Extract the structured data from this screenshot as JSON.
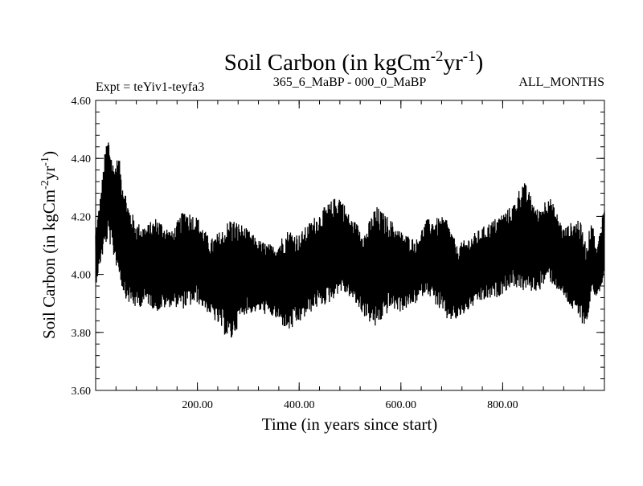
{
  "chart_data": {
    "type": "line",
    "title": "Soil Carbon (in kgCm",
    "title_sup1": "-2",
    "title_mid": "yr",
    "title_sup2": "-1",
    "title_end": ")",
    "subtitle_left": "Expt = teYiv1-teyfa3",
    "subtitle_center": "365_6_MaBP - 000_0_MaBP",
    "subtitle_right": "ALL_MONTHS",
    "xlabel": "Time (in years since start)",
    "ylabel": "Soil Carbon (in kgCm",
    "ylabel_sup1": "-2",
    "ylabel_mid": "yr",
    "ylabel_sup2": "-1",
    "ylabel_end": ")",
    "xlim": [
      0,
      1000
    ],
    "ylim": [
      3.6,
      4.6
    ],
    "x_ticks": [
      200,
      400,
      600,
      800
    ],
    "x_tick_labels": [
      "200.00",
      "400.00",
      "600.00",
      "800.00"
    ],
    "y_ticks": [
      3.6,
      3.8,
      4.0,
      4.2,
      4.4,
      4.6
    ],
    "y_tick_labels": [
      "3.60",
      "3.80",
      "4.00",
      "4.20",
      "4.40",
      "4.60"
    ],
    "series": [
      {
        "name": "Soil Carbon",
        "color": "#000000",
        "envelope": {
          "x": [
            0,
            10,
            20,
            25,
            35,
            45,
            55,
            65,
            80,
            100,
            120,
            150,
            175,
            200,
            225,
            250,
            265,
            290,
            320,
            350,
            380,
            400,
            430,
            460,
            480,
            500,
            530,
            550,
            580,
            600,
            630,
            650,
            690,
            710,
            750,
            790,
            820,
            840,
            870,
            890,
            920,
            950,
            965,
            975,
            985,
            995,
            1000
          ],
          "upper": [
            4.15,
            4.28,
            4.45,
            4.48,
            4.38,
            4.41,
            4.32,
            4.24,
            4.18,
            4.17,
            4.2,
            4.15,
            4.23,
            4.2,
            4.12,
            4.16,
            4.2,
            4.17,
            4.12,
            4.1,
            4.16,
            4.14,
            4.2,
            4.25,
            4.28,
            4.2,
            4.15,
            4.24,
            4.19,
            4.15,
            4.12,
            4.19,
            4.2,
            4.1,
            4.15,
            4.2,
            4.24,
            4.33,
            4.22,
            4.28,
            4.16,
            4.2,
            4.1,
            4.2,
            4.08,
            4.2,
            4.25
          ],
          "lower": [
            3.96,
            4.04,
            4.1,
            4.12,
            4.06,
            4.0,
            3.93,
            3.9,
            3.88,
            3.9,
            3.87,
            3.89,
            3.88,
            3.9,
            3.86,
            3.8,
            3.76,
            3.86,
            3.87,
            3.85,
            3.8,
            3.83,
            3.88,
            3.9,
            3.94,
            3.92,
            3.85,
            3.81,
            3.88,
            3.87,
            3.9,
            3.94,
            3.84,
            3.84,
            3.9,
            3.92,
            3.96,
            3.94,
            3.94,
            3.98,
            3.92,
            3.84,
            3.82,
            3.94,
            3.92,
            3.95,
            3.96
          ]
        }
      }
    ]
  }
}
